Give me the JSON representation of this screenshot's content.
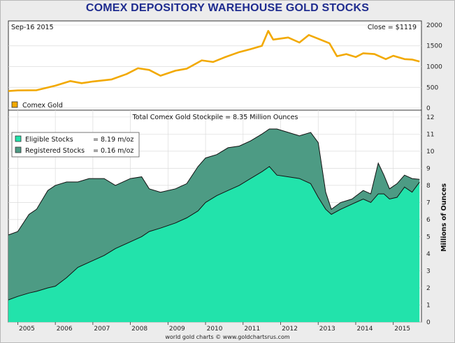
{
  "title": "COMEX DEPOSITORY WAREHOUSE GOLD STOCKS",
  "credit": "world gold charts © www.goldchartsrus.com",
  "colors": {
    "gold": "#f2a900",
    "eligible": "#22e3ab",
    "registered": "#4d9b84",
    "title": "#1f2c8f"
  },
  "chart_data": [
    {
      "type": "line",
      "name": "top-panel",
      "date_label": "Sep-16  2015",
      "close_label": "Close = $1119",
      "legend": [
        "Comex Gold"
      ],
      "yticks": [
        0,
        500,
        1000,
        1500,
        2000
      ],
      "ylim": [
        -50,
        2100
      ],
      "xlim": [
        2004.75,
        2015.75
      ],
      "series": [
        {
          "name": "Comex Gold",
          "x": [
            2004.75,
            2005.0,
            2005.5,
            2006.0,
            2006.4,
            2006.7,
            2007.0,
            2007.5,
            2007.9,
            2008.2,
            2008.5,
            2008.8,
            2009.2,
            2009.5,
            2009.9,
            2010.2,
            2010.5,
            2010.9,
            2011.2,
            2011.5,
            2011.67,
            2011.8,
            2012.2,
            2012.5,
            2012.75,
            2013.0,
            2013.3,
            2013.5,
            2013.75,
            2014.0,
            2014.2,
            2014.5,
            2014.8,
            2015.0,
            2015.3,
            2015.5,
            2015.7
          ],
          "y": [
            410,
            425,
            430,
            540,
            650,
            600,
            640,
            690,
            820,
            960,
            920,
            780,
            900,
            950,
            1150,
            1110,
            1220,
            1350,
            1420,
            1500,
            1860,
            1650,
            1700,
            1580,
            1760,
            1670,
            1560,
            1250,
            1300,
            1230,
            1320,
            1300,
            1180,
            1260,
            1180,
            1170,
            1120
          ]
        }
      ]
    },
    {
      "type": "area",
      "name": "bottom-panel",
      "title": "Total Comex Gold Stockpile = 8.35 Million Ounces",
      "ylabel": "Millions of Ounces",
      "legend": [
        "Eligible Stocks",
        "Registered Stocks"
      ],
      "legend_values": [
        "= 8.19 m/oz",
        "= 0.16 m/oz"
      ],
      "xticks": [
        "2005",
        "2006",
        "2007",
        "2008",
        "2009",
        "2010",
        "2011",
        "2012",
        "2013",
        "2014",
        "2015"
      ],
      "yticks": [
        0,
        1,
        2,
        3,
        4,
        5,
        6,
        7,
        8,
        9,
        10,
        11,
        12
      ],
      "ylim": [
        0,
        12.4
      ],
      "xlim": [
        2004.75,
        2015.75
      ],
      "x": [
        2004.75,
        2005.0,
        2005.3,
        2005.5,
        2005.8,
        2006.0,
        2006.3,
        2006.6,
        2006.9,
        2007.3,
        2007.6,
        2008.0,
        2008.3,
        2008.5,
        2008.8,
        2009.2,
        2009.5,
        2009.8,
        2010.0,
        2010.3,
        2010.6,
        2010.9,
        2011.2,
        2011.5,
        2011.7,
        2011.9,
        2012.2,
        2012.5,
        2012.8,
        2013.0,
        2013.2,
        2013.35,
        2013.6,
        2013.9,
        2014.2,
        2014.4,
        2014.6,
        2014.75,
        2014.9,
        2015.1,
        2015.3,
        2015.5,
        2015.7
      ],
      "series": [
        {
          "name": "Eligible Stocks",
          "values": [
            1.3,
            1.5,
            1.7,
            1.8,
            2.0,
            2.1,
            2.6,
            3.2,
            3.5,
            3.9,
            4.3,
            4.7,
            5.0,
            5.3,
            5.5,
            5.8,
            6.1,
            6.5,
            7.0,
            7.4,
            7.7,
            8.0,
            8.4,
            8.8,
            9.1,
            8.6,
            8.5,
            8.4,
            8.1,
            7.3,
            6.6,
            6.3,
            6.6,
            6.9,
            7.2,
            7.0,
            7.5,
            7.5,
            7.2,
            7.3,
            7.9,
            7.6,
            8.19
          ]
        },
        {
          "name": "Registered Stocks",
          "values": [
            3.8,
            3.8,
            4.6,
            4.8,
            5.7,
            5.9,
            5.6,
            5.0,
            4.9,
            4.5,
            3.7,
            3.7,
            3.5,
            2.5,
            2.1,
            2.0,
            2.0,
            2.6,
            2.6,
            2.4,
            2.5,
            2.3,
            2.2,
            2.2,
            2.2,
            2.7,
            2.6,
            2.5,
            3.0,
            3.2,
            1.0,
            0.3,
            0.4,
            0.3,
            0.5,
            0.5,
            1.8,
            1.1,
            0.6,
            0.8,
            0.7,
            0.8,
            0.16
          ]
        }
      ]
    }
  ]
}
